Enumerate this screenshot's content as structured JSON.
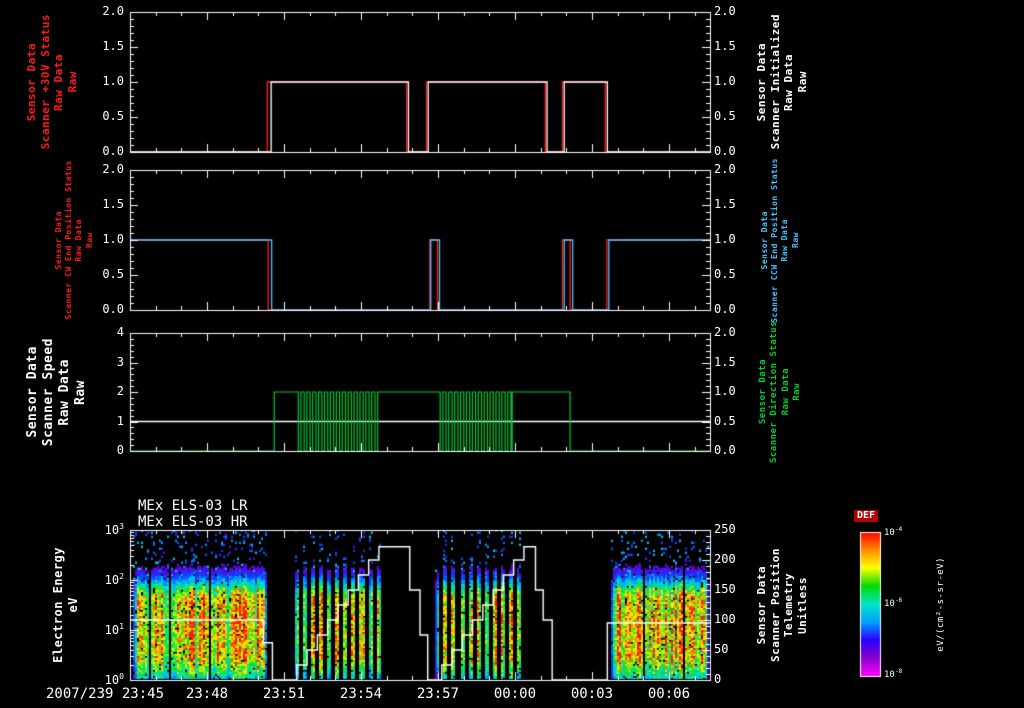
{
  "window": {
    "background": "#000000",
    "frame_color": "#ffffff"
  },
  "time_axis": {
    "t_min": 0,
    "t_max": 22.6,
    "minor_step": 1,
    "major_ticks": [
      0,
      3,
      6,
      9,
      12,
      15,
      18,
      21
    ],
    "tick_labels": [
      "2007/239 23:45",
      "23:48",
      "23:51",
      "23:54",
      "23:57",
      "00:00",
      "00:03",
      "00:06"
    ]
  },
  "chart_data": [
    {
      "type": "line",
      "name": "scanner-30v-and-initialized",
      "ylim": [
        0,
        2
      ],
      "ytick_values": [
        0,
        0.5,
        1,
        1.5,
        2
      ],
      "ytick_labels": [
        "0.0",
        "0.5",
        "1.0",
        "1.5",
        "2.0"
      ],
      "left_label": {
        "lines": [
          "Sensor Data",
          "Scanner +30V Status",
          "Raw Data",
          "Raw"
        ],
        "color": "#ff1a1a"
      },
      "right_label": {
        "lines": [
          "Sensor Data",
          "Scanner Initialized",
          "Raw Data",
          "Raw"
        ],
        "color": "#ffffff"
      },
      "series": [
        {
          "name": "Scanner +30V Status Raw Data",
          "color": "#ff1a1a",
          "steps": [
            [
              0,
              0
            ],
            [
              5.35,
              1
            ],
            [
              10.78,
              0
            ],
            [
              11.55,
              1
            ],
            [
              16.18,
              0
            ],
            [
              16.85,
              1
            ],
            [
              18.52,
              0
            ],
            [
              22.6,
              0
            ]
          ]
        },
        {
          "name": "Scanner Initialized Raw Data",
          "color": "#ffffff",
          "steps": [
            [
              0,
              0
            ],
            [
              5.5,
              1
            ],
            [
              10.85,
              0
            ],
            [
              11.62,
              1
            ],
            [
              16.25,
              0
            ],
            [
              16.92,
              1
            ],
            [
              18.6,
              0
            ],
            [
              22.6,
              0
            ]
          ]
        }
      ]
    },
    {
      "type": "line",
      "name": "scanner-end-position-status",
      "ylim": [
        0,
        2
      ],
      "ytick_values": [
        0,
        0.5,
        1,
        1.5,
        2
      ],
      "ytick_labels": [
        "0.0",
        "0.5",
        "1.0",
        "1.5",
        "2.0"
      ],
      "left_label": {
        "lines": [
          "Sensor Data",
          "Scanner CW End Position Status",
          "Raw Data",
          "Raw"
        ],
        "color": "#ff1a1a"
      },
      "right_label": {
        "lines": [
          "Sensor Data",
          "Scanner CCW End Position Status",
          "Raw Data",
          "Raw"
        ],
        "color": "#4dc3ff"
      },
      "series": [
        {
          "name": "Scanner CW End Position Status Raw Data",
          "color": "#ff1a1a",
          "steps": [
            [
              0,
              1
            ],
            [
              5.38,
              0
            ],
            [
              11.68,
              1
            ],
            [
              11.98,
              0
            ],
            [
              16.85,
              1
            ],
            [
              17.15,
              0
            ],
            [
              18.58,
              1
            ],
            [
              22.6,
              1
            ]
          ]
        },
        {
          "name": "Scanner CCW End Position Status Raw Data",
          "color": "#4dc3ff",
          "steps": [
            [
              0,
              1
            ],
            [
              5.52,
              0
            ],
            [
              11.72,
              1
            ],
            [
              12.06,
              0
            ],
            [
              16.92,
              1
            ],
            [
              17.25,
              0
            ],
            [
              18.66,
              1
            ],
            [
              22.6,
              1
            ]
          ]
        }
      ]
    },
    {
      "type": "line",
      "name": "scanner-speed-and-direction",
      "ylim_left": [
        0,
        4
      ],
      "ytick_values_left": [
        0,
        1,
        2,
        3,
        4
      ],
      "ytick_labels_left": [
        "0",
        "1",
        "2",
        "3",
        "4"
      ],
      "ylim_right": [
        0,
        2
      ],
      "ytick_values_right": [
        0,
        0.5,
        1,
        1.5,
        2
      ],
      "ytick_labels_right": [
        "0.0",
        "0.5",
        "1.0",
        "1.5",
        "2.0"
      ],
      "left_label": {
        "lines": [
          "Sensor Data",
          "Scanner Speed",
          "Raw Data",
          "Raw"
        ],
        "color": "#ffffff"
      },
      "right_label": {
        "lines": [
          "Sensor Data",
          "Scanner Direction Status",
          "Raw Data",
          "Raw"
        ],
        "color": "#00cc33"
      },
      "series": [
        {
          "name": "Scanner Speed Raw Data",
          "color": "#ffffff",
          "axis": "left",
          "steps": [
            [
              0,
              1
            ],
            [
              22.6,
              1
            ]
          ]
        },
        {
          "name": "Scanner Direction Status Raw Data",
          "color": "#00cc33",
          "axis": "right",
          "segments": [
            {
              "type": "level",
              "t0": 0,
              "t1": 5.62,
              "v": 0
            },
            {
              "type": "level",
              "t0": 5.62,
              "t1": 6.43,
              "v": 1
            },
            {
              "type": "square",
              "t0": 6.43,
              "t1": 9.66,
              "period": 0.23,
              "lo": 0,
              "hi": 1
            },
            {
              "type": "level",
              "t0": 9.66,
              "t1": 11.96,
              "v": 1
            },
            {
              "type": "square",
              "t0": 11.96,
              "t1": 14.89,
              "period": 0.23,
              "lo": 0,
              "hi": 1
            },
            {
              "type": "level",
              "t0": 14.89,
              "t1": 17.15,
              "v": 1
            },
            {
              "type": "level",
              "t0": 17.15,
              "t1": 22.6,
              "v": 0
            }
          ]
        }
      ]
    },
    {
      "type": "heatmap",
      "name": "els-electron-energy-spectrogram",
      "titles": [
        "MEx ELS-03 LR",
        "MEx ELS-03 HR"
      ],
      "left_label": {
        "lines": [
          "Electron Energy",
          "eV"
        ],
        "color": "#ffffff"
      },
      "right_label": {
        "lines": [
          "Sensor Data",
          "Scanner Position",
          "Telemetry",
          "Unitless"
        ],
        "color": "#ffffff"
      },
      "y_log_range": [
        0,
        3
      ],
      "ytick_labels_left": [
        "10^0",
        "10^1",
        "10^2",
        "10^3"
      ],
      "ylim_right": [
        0,
        250
      ],
      "ytick_values_right": [
        0,
        50,
        100,
        150,
        200,
        250
      ],
      "ytick_labels_right": [
        "0",
        "50",
        "100",
        "150",
        "200",
        "250"
      ],
      "energy_peak_log": 1.05,
      "bursts": [
        {
          "t0": 0.15,
          "t1": 5.35,
          "strength": 1.0,
          "striped": false
        },
        {
          "t0": 6.4,
          "t1": 9.9,
          "strength": 0.95,
          "striped": true
        },
        {
          "t0": 11.9,
          "t1": 15.35,
          "strength": 0.95,
          "striped": true
        },
        {
          "t0": 18.75,
          "t1": 22.55,
          "strength": 1.0,
          "striped": false
        }
      ],
      "overlay": {
        "name": "Scanner Position Telemetry",
        "color": "#ffffff",
        "axis": "right",
        "steps": [
          [
            0,
            100
          ],
          [
            5.2,
            62
          ],
          [
            5.55,
            0
          ],
          [
            6.5,
            25
          ],
          [
            6.9,
            50
          ],
          [
            7.3,
            75
          ],
          [
            7.7,
            100
          ],
          [
            8.1,
            125
          ],
          [
            8.5,
            150
          ],
          [
            8.9,
            175
          ],
          [
            9.3,
            200
          ],
          [
            9.7,
            222
          ],
          [
            10.9,
            150
          ],
          [
            11.3,
            75
          ],
          [
            11.6,
            0
          ],
          [
            12.15,
            25
          ],
          [
            12.55,
            50
          ],
          [
            12.95,
            75
          ],
          [
            13.35,
            100
          ],
          [
            13.75,
            125
          ],
          [
            14.15,
            150
          ],
          [
            14.55,
            175
          ],
          [
            14.95,
            200
          ],
          [
            15.35,
            222
          ],
          [
            15.8,
            150
          ],
          [
            16.1,
            100
          ],
          [
            16.45,
            0
          ],
          [
            18.6,
            95
          ],
          [
            22.6,
            95
          ]
        ]
      }
    }
  ],
  "colorbar": {
    "label": "DEF",
    "tick_labels": [
      "10^-4",
      "10^-6",
      "10^-8"
    ],
    "units": "eV/(cm²-s-sr-eV)",
    "gradient_top_to_bottom": [
      "#ff0000",
      "#ff8c00",
      "#ffff00",
      "#00dd00",
      "#00e6c8",
      "#00a2ff",
      "#2a00ff",
      "#8800cc",
      "#ff00ff"
    ]
  }
}
